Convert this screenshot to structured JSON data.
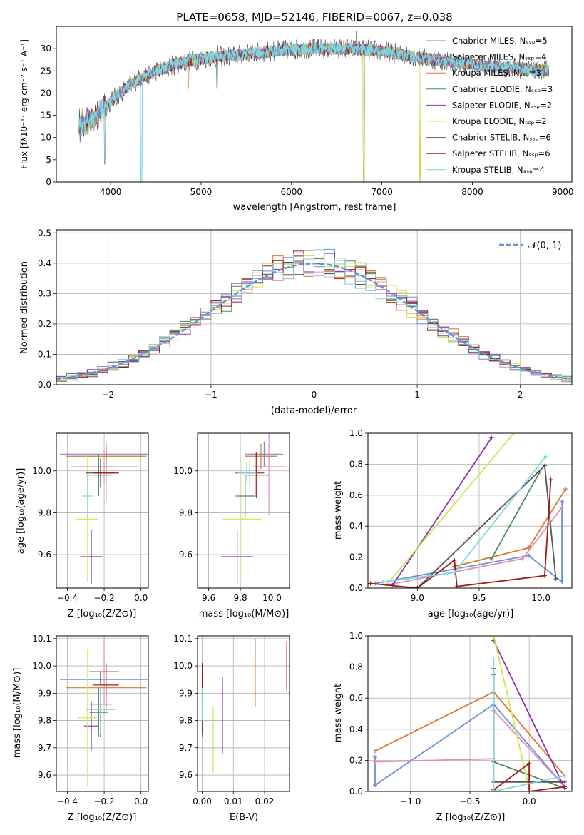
{
  "colors": {
    "c1": "#6a8fd4",
    "c2": "#e58cb8",
    "c3": "#d9782b",
    "c4": "#4e8a5a",
    "c5": "#8b2fb0",
    "c6": "#cde84a",
    "c7": "#555555",
    "c8": "#a01a1a",
    "c9": "#7fd6e0",
    "grid": "#b0b0b0"
  },
  "chart_data": [
    {
      "id": "spectrum",
      "type": "line",
      "title": "PLATE=0658, MJD=52146, FIBERID=0067, z=0.038",
      "xlabel": "wavelength [Angstrom, rest frame]",
      "ylabel": "Flux [fλ10⁻¹⁷ erg cm⁻² s⁻¹ A⁻¹]",
      "xlim": [
        3400,
        9100
      ],
      "ylim": [
        0,
        35
      ],
      "xticks": [
        "4000",
        "5000",
        "6000",
        "7000",
        "8000",
        "9000"
      ],
      "yticks": [
        "0",
        "5",
        "10",
        "15",
        "20",
        "25",
        "30"
      ],
      "grid": false,
      "legend_position": "upper-right",
      "legend": [
        "Chabrier MILES, Nₛₛₚ=5",
        "Salpeter MILES, Nₛₛₚ=4",
        "Kroupa MILES, Nₛₛₚ=3",
        "Chabrier ELODIE, Nₛₛₚ=3",
        "Salpeter ELODIE, Nₛₛₚ=2",
        "Kroupa ELODIE, Nₛₛₚ=2",
        "Chabrier STELIB, Nₛₛₚ=6",
        "Salpeter STELIB, Nₛₛₚ=6",
        "Kroupa STELIB, Nₛₛₚ=4"
      ],
      "continuum": [
        [
          3650,
          13
        ],
        [
          3800,
          14
        ],
        [
          3950,
          17
        ],
        [
          4100,
          20
        ],
        [
          4300,
          23
        ],
        [
          4500,
          25
        ],
        [
          4800,
          27
        ],
        [
          5100,
          28
        ],
        [
          5400,
          28.5
        ],
        [
          5800,
          29.5
        ],
        [
          6200,
          30
        ],
        [
          6600,
          30
        ],
        [
          7000,
          29.5
        ],
        [
          7400,
          28
        ],
        [
          7800,
          27
        ],
        [
          8200,
          26
        ],
        [
          8600,
          25.5
        ],
        [
          8850,
          25
        ]
      ],
      "dips": [
        [
          3933,
          4
        ],
        [
          4340,
          0
        ],
        [
          4860,
          21
        ],
        [
          5175,
          21
        ],
        [
          6800,
          0
        ],
        [
          7420,
          0
        ]
      ]
    },
    {
      "id": "residuals",
      "type": "step",
      "xlabel": "(data-model)/error",
      "ylabel": "Normed distribution",
      "xlim": [
        -2.5,
        2.5
      ],
      "ylim": [
        0,
        0.51
      ],
      "xticks": [
        "−2",
        "−1",
        "0",
        "1",
        "2"
      ],
      "yticks": [
        "0.0",
        "0.1",
        "0.2",
        "0.3",
        "0.4",
        "0.5"
      ],
      "grid": true,
      "legend_position": "upper-right",
      "legend": [
        "𝒩(0, 1)"
      ],
      "bin_width": 0.1,
      "reference": "normal(0,1)"
    },
    {
      "id": "age-vs-Z",
      "type": "errorbar",
      "xlabel": "Z [log₁₀(Z/Z⊙)]",
      "ylabel": "age  [log₁₀(age/yr)]",
      "xlim": [
        -0.46,
        0.04
      ],
      "ylim": [
        9.44,
        10.18
      ],
      "xticks": [
        "−0.4",
        "−0.2",
        "0.0"
      ],
      "yticks": [
        "9.6",
        "9.8",
        "10.0"
      ],
      "grid": true,
      "points": [
        [
          -0.19,
          10.08,
          0.25,
          0.06
        ],
        [
          -0.2,
          10.02,
          0.18,
          0.08
        ],
        [
          -0.19,
          10.07,
          0.22,
          0.06
        ],
        [
          -0.23,
          9.98,
          0.07,
          0.1
        ],
        [
          -0.27,
          9.59,
          0.06,
          0.13
        ],
        [
          -0.29,
          9.77,
          0.06,
          0.3
        ],
        [
          -0.22,
          9.99,
          0.08,
          0.07
        ],
        [
          -0.19,
          9.99,
          0.07,
          0.13
        ],
        [
          -0.29,
          9.88,
          0.03,
          0.1
        ]
      ]
    },
    {
      "id": "age-vs-mass",
      "type": "errorbar",
      "xlabel": "mass [log₁₀(M/M⊙)]",
      "ylabel": "",
      "xlim": [
        9.53,
        10.11
      ],
      "ylim": [
        9.44,
        10.18
      ],
      "xticks": [
        "9.6",
        "9.8",
        "10.0"
      ],
      "yticks": [
        "9.6",
        "9.8",
        "10.0"
      ],
      "grid": true,
      "points": [
        [
          9.95,
          10.08,
          0.12,
          0.06
        ],
        [
          9.98,
          10.02,
          0.1,
          0.23
        ],
        [
          9.93,
          10.07,
          0.1,
          0.06
        ],
        [
          9.83,
          9.88,
          0.06,
          0.1
        ],
        [
          9.78,
          9.59,
          0.1,
          0.13
        ],
        [
          9.81,
          9.77,
          0.12,
          0.3
        ],
        [
          9.86,
          9.99,
          0.09,
          0.06
        ],
        [
          9.9,
          9.98,
          0.08,
          0.11
        ],
        [
          9.84,
          9.99,
          0.06,
          0.05
        ]
      ]
    },
    {
      "id": "mass-weight-vs-age",
      "type": "line",
      "xlabel": "age  [log₁₀(age/yr)]",
      "ylabel": "mass weight",
      "xlim": [
        8.6,
        10.25
      ],
      "ylim": [
        0,
        1.0
      ],
      "xticks": [
        "9.0",
        "9.5",
        "10.0"
      ],
      "yticks": [
        "0.0",
        "0.2",
        "0.4",
        "0.6",
        "0.8",
        "1.0"
      ],
      "grid": true,
      "series": [
        [
          [
            8.66,
            0.03
          ],
          [
            9.9,
            0.21
          ],
          [
            10.17,
            0.04
          ],
          [
            10.17,
            0.56
          ]
        ],
        [
          [
            8.75,
            0.02
          ],
          [
            9.85,
            0.19
          ],
          [
            10.17,
            0.52
          ]
        ],
        [
          [
            9.3,
            0.14
          ],
          [
            9.9,
            0.26
          ],
          [
            10.2,
            0.64
          ]
        ],
        [
          [
            9.6,
            0.19
          ],
          [
            9.99,
            0.75
          ]
        ],
        [
          [
            8.8,
            0.02
          ],
          [
            9.6,
            0.97
          ]
        ],
        [
          [
            8.75,
            0.02
          ],
          [
            9.78,
            1.0
          ]
        ],
        [
          [
            9.0,
            0.0
          ],
          [
            10.03,
            0.79
          ],
          [
            10.12,
            0.06
          ]
        ],
        [
          [
            8.62,
            0.03
          ],
          [
            9.0,
            0.0
          ],
          [
            9.3,
            0.18
          ],
          [
            9.32,
            0.01
          ],
          [
            10.03,
            0.08
          ],
          [
            10.08,
            0.7
          ]
        ],
        [
          [
            8.72,
            0.04
          ],
          [
            9.3,
            0.1
          ],
          [
            10.04,
            0.85
          ]
        ]
      ]
    },
    {
      "id": "mass-vs-Z",
      "type": "errorbar",
      "xlabel": "Z [log₁₀(Z/Z⊙)]",
      "ylabel": "mass [log₁₀(M/M⊙)]",
      "xlim": [
        -0.46,
        0.04
      ],
      "ylim": [
        9.54,
        10.11
      ],
      "xticks": [
        "−0.4",
        "−0.2",
        "0.0"
      ],
      "yticks": [
        "9.6",
        "9.7",
        "9.8",
        "9.9",
        "10.0",
        "10.1"
      ],
      "grid": true,
      "points": [
        [
          -0.19,
          9.95,
          0.25,
          0.06
        ],
        [
          -0.2,
          9.98,
          0.08,
          0.12
        ],
        [
          -0.19,
          9.92,
          0.22,
          0.09
        ],
        [
          -0.23,
          9.83,
          0.05,
          0.09
        ],
        [
          -0.27,
          9.78,
          0.04,
          0.09
        ],
        [
          -0.29,
          9.81,
          0.05,
          0.25
        ],
        [
          -0.22,
          9.86,
          0.06,
          0.12
        ],
        [
          -0.19,
          9.93,
          0.07,
          0.08
        ],
        [
          -0.22,
          9.84,
          0.08,
          0.09
        ]
      ]
    },
    {
      "id": "mass-vs-ebv",
      "type": "errorbar",
      "xlabel": "E(B-V)",
      "ylabel": "",
      "xlim": [
        -0.0015,
        0.028
      ],
      "ylim": [
        9.54,
        10.11
      ],
      "xticks": [
        "0.00",
        "0.01",
        "0.02"
      ],
      "yticks": [
        "9.6",
        "9.7",
        "9.8",
        "9.9",
        "10.0",
        "10.1"
      ],
      "grid": true,
      "points": [
        [
          0.017,
          10.03,
          0,
          0.07
        ],
        [
          0.027,
          10.0,
          0,
          0.09
        ],
        [
          0.017,
          9.95,
          0,
          0.1
        ],
        [
          0.0,
          9.83,
          0,
          0.09
        ],
        [
          0.0065,
          9.82,
          0,
          0.14
        ],
        [
          0.0035,
          9.73,
          0,
          0.12
        ],
        [
          0.0,
          9.88,
          0,
          0.13
        ],
        [
          0.0,
          9.93,
          0,
          0.08
        ],
        [
          0.0,
          9.86,
          0,
          0.06
        ]
      ]
    },
    {
      "id": "mass-weight-vs-Z",
      "type": "line",
      "xlabel": "Z [log₁₀(Z/Z⊙)]",
      "ylabel": "mass weight",
      "xlim": [
        -1.36,
        0.36
      ],
      "ylim": [
        0,
        1.0
      ],
      "xticks": [
        "−1.0",
        "−0.5",
        "0.0"
      ],
      "yticks": [
        "0.0",
        "0.2",
        "0.4",
        "0.6",
        "0.8",
        "1.0"
      ],
      "grid": true,
      "series": [
        [
          [
            -1.3,
            0.22
          ],
          [
            -1.3,
            0.04
          ],
          [
            -0.3,
            0.56
          ],
          [
            0.3,
            0.03
          ]
        ],
        [
          [
            -1.3,
            0.19
          ],
          [
            -0.3,
            0.21
          ],
          [
            -0.3,
            0.52
          ],
          [
            0.3,
            0.03
          ]
        ],
        [
          [
            -1.3,
            0.26
          ],
          [
            -0.3,
            0.64
          ],
          [
            0.3,
            0.1
          ]
        ],
        [
          [
            -0.3,
            0.75
          ],
          [
            -0.3,
            0.19
          ],
          [
            0.3,
            0.02
          ]
        ],
        [
          [
            -0.3,
            0.97
          ],
          [
            0.3,
            0.02
          ]
        ],
        [
          [
            -0.3,
            1.0
          ],
          [
            0.0,
            0.02
          ]
        ],
        [
          [
            -0.3,
            0.79
          ],
          [
            -0.3,
            0.06
          ],
          [
            0.3,
            0.06
          ]
        ],
        [
          [
            -0.3,
            0.01
          ],
          [
            0.0,
            0.18
          ],
          [
            0.0,
            0.0
          ],
          [
            0.3,
            0.03
          ]
        ],
        [
          [
            -0.3,
            0.85
          ],
          [
            -0.3,
            0.0
          ],
          [
            0.3,
            0.1
          ]
        ]
      ]
    }
  ]
}
